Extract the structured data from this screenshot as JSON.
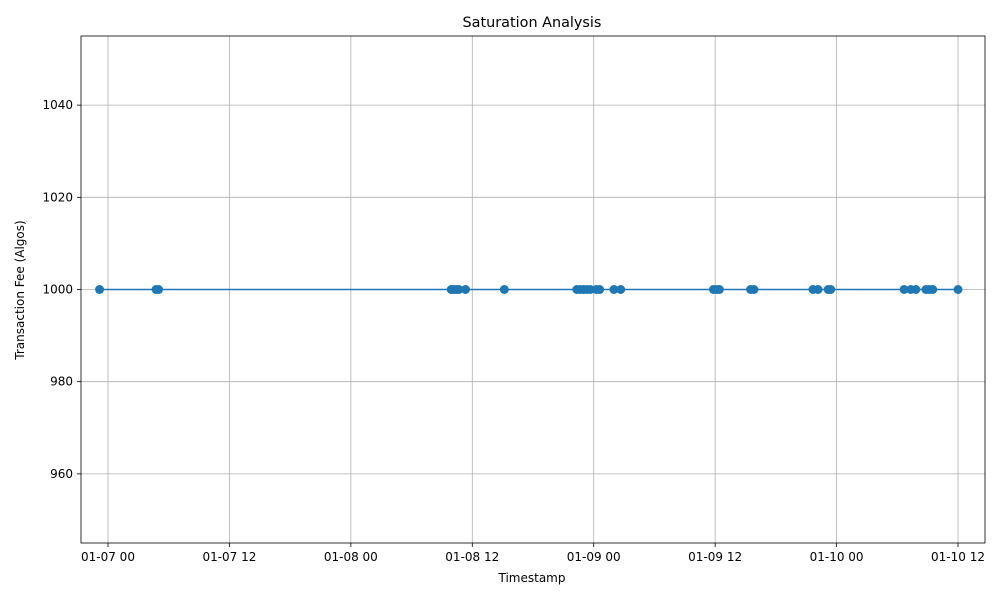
{
  "chart_data": {
    "type": "line",
    "title": "Saturation Analysis",
    "xlabel": "Timestamp",
    "ylabel": "Transaction Fee (Algos)",
    "x_is_datetime": true,
    "xlim": [
      "2024-01-06T21:20",
      "2024-01-10T14:40"
    ],
    "ylim": [
      945,
      1055
    ],
    "x_ticks": [
      {
        "value": "2024-01-07T00:00",
        "label": "01-07 00"
      },
      {
        "value": "2024-01-07T12:00",
        "label": "01-07 12"
      },
      {
        "value": "2024-01-08T00:00",
        "label": "01-08 00"
      },
      {
        "value": "2024-01-08T12:00",
        "label": "01-08 12"
      },
      {
        "value": "2024-01-09T00:00",
        "label": "01-09 00"
      },
      {
        "value": "2024-01-09T12:00",
        "label": "01-09 12"
      },
      {
        "value": "2024-01-10T00:00",
        "label": "01-10 00"
      },
      {
        "value": "2024-01-10T12:00",
        "label": "01-10 12"
      }
    ],
    "y_ticks": [
      960,
      980,
      1000,
      1020,
      1040
    ],
    "grid": true,
    "series": [
      {
        "color": "#1f77b4",
        "marker": "circle",
        "points": [
          {
            "x": "2024-01-06T23:10",
            "y": 1000
          },
          {
            "x": "2024-01-07T04:45",
            "y": 1000
          },
          {
            "x": "2024-01-07T05:00",
            "y": 1000
          },
          {
            "x": "2024-01-08T09:55",
            "y": 1000
          },
          {
            "x": "2024-01-08T10:10",
            "y": 1000
          },
          {
            "x": "2024-01-08T10:25",
            "y": 1000
          },
          {
            "x": "2024-01-08T10:40",
            "y": 1000
          },
          {
            "x": "2024-01-08T11:20",
            "y": 1000
          },
          {
            "x": "2024-01-08T15:10",
            "y": 1000
          },
          {
            "x": "2024-01-08T22:20",
            "y": 1000
          },
          {
            "x": "2024-01-08T22:40",
            "y": 1000
          },
          {
            "x": "2024-01-08T23:00",
            "y": 1000
          },
          {
            "x": "2024-01-08T23:20",
            "y": 1000
          },
          {
            "x": "2024-01-08T23:40",
            "y": 1000
          },
          {
            "x": "2024-01-09T00:15",
            "y": 1000
          },
          {
            "x": "2024-01-09T00:35",
            "y": 1000
          },
          {
            "x": "2024-01-09T02:00",
            "y": 1000
          },
          {
            "x": "2024-01-09T02:40",
            "y": 1000
          },
          {
            "x": "2024-01-09T11:50",
            "y": 1000
          },
          {
            "x": "2024-01-09T12:10",
            "y": 1000
          },
          {
            "x": "2024-01-09T12:25",
            "y": 1000
          },
          {
            "x": "2024-01-09T15:30",
            "y": 1000
          },
          {
            "x": "2024-01-09T15:50",
            "y": 1000
          },
          {
            "x": "2024-01-09T21:40",
            "y": 1000
          },
          {
            "x": "2024-01-09T22:10",
            "y": 1000
          },
          {
            "x": "2024-01-09T23:10",
            "y": 1000
          },
          {
            "x": "2024-01-09T23:25",
            "y": 1000
          },
          {
            "x": "2024-01-10T06:40",
            "y": 1000
          },
          {
            "x": "2024-01-10T07:20",
            "y": 1000
          },
          {
            "x": "2024-01-10T07:50",
            "y": 1000
          },
          {
            "x": "2024-01-10T08:50",
            "y": 1000
          },
          {
            "x": "2024-01-10T09:10",
            "y": 1000
          },
          {
            "x": "2024-01-10T09:30",
            "y": 1000
          },
          {
            "x": "2024-01-10T12:00",
            "y": 1000
          }
        ]
      }
    ]
  }
}
